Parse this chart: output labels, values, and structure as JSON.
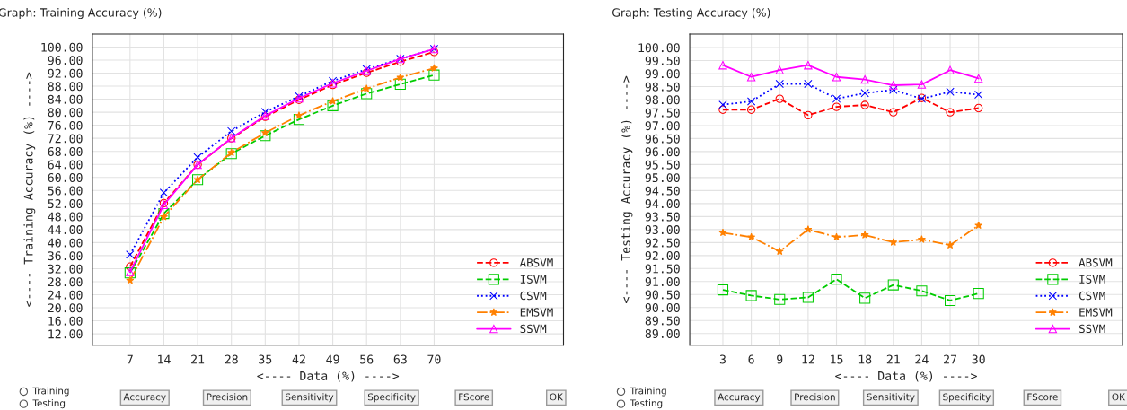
{
  "chart_data": [
    {
      "type": "line",
      "title": "Graph: Training Accuracy (%)",
      "xlabel": "<---- Data (%) ---->",
      "ylabel": "<---- Training Accuracy (%) ---->",
      "x": [
        7,
        14,
        21,
        28,
        35,
        42,
        49,
        56,
        63,
        70
      ],
      "series": [
        {
          "name": "ABSVM",
          "color": "#ff0000",
          "marker": "circle",
          "line_style": "dashed",
          "values": [
            32.6,
            52.1,
            63.9,
            72.0,
            78.6,
            83.8,
            88.4,
            92.1,
            95.5,
            98.5
          ]
        },
        {
          "name": "ISVM",
          "color": "#00cc00",
          "marker": "square",
          "line_style": "dashed",
          "values": [
            30.7,
            48.9,
            59.3,
            67.3,
            72.8,
            77.8,
            82.0,
            85.7,
            88.6,
            91.4
          ]
        },
        {
          "name": "CSVM",
          "color": "#0000ff",
          "marker": "cross",
          "line_style": "dotted",
          "values": [
            36.3,
            55.3,
            66.2,
            74.2,
            80.1,
            84.9,
            89.6,
            93.2,
            96.4,
            99.4
          ]
        },
        {
          "name": "EMSVM",
          "color": "#ff8000",
          "marker": "star",
          "line_style": "dashdot",
          "values": [
            28.4,
            47.9,
            59.3,
            67.6,
            73.7,
            79.0,
            83.4,
            87.2,
            90.7,
            93.5
          ]
        },
        {
          "name": "SSVM",
          "color": "#ff00ff",
          "marker": "triangle",
          "line_style": "solid",
          "values": [
            31.0,
            51.6,
            63.9,
            72.1,
            78.9,
            84.3,
            88.9,
            92.7,
            96.4,
            99.4
          ]
        }
      ],
      "xlim": [
        -0.8,
        96.8
      ],
      "xticks": [
        7,
        14,
        21,
        28,
        35,
        42,
        49,
        56,
        63,
        70
      ],
      "ylim": [
        8.5,
        104
      ],
      "yticks": [
        {
          "value": 12,
          "label": "12.00"
        },
        {
          "value": 16,
          "label": "16.00"
        },
        {
          "value": 20,
          "label": "20.00"
        },
        {
          "value": 24,
          "label": "24.00"
        },
        {
          "value": 28,
          "label": "28.00"
        },
        {
          "value": 32,
          "label": "32.00"
        },
        {
          "value": 36,
          "label": "36.00"
        },
        {
          "value": 40,
          "label": "40.00"
        },
        {
          "value": 44,
          "label": "44.00"
        },
        {
          "value": 48,
          "label": "48.00"
        },
        {
          "value": 52,
          "label": "52.00"
        },
        {
          "value": 56,
          "label": "56.00"
        },
        {
          "value": 60,
          "label": "60.00"
        },
        {
          "value": 64,
          "label": "64.00"
        },
        {
          "value": 68,
          "label": "68.00"
        },
        {
          "value": 72,
          "label": "72.00"
        },
        {
          "value": 76,
          "label": "76.00"
        },
        {
          "value": 80,
          "label": "80.00"
        },
        {
          "value": 84,
          "label": "84.00"
        },
        {
          "value": 88,
          "label": "88.00"
        },
        {
          "value": 92,
          "label": "92.00"
        },
        {
          "value": 96,
          "label": "96.00"
        },
        {
          "value": 100,
          "label": "100.00"
        }
      ],
      "grid": true,
      "legend": "bottom right",
      "annotations": [
        "Training",
        "Testing",
        "Accuracy",
        "Precision",
        "Sensitivity",
        "Specificity",
        "FScore",
        "OK"
      ]
    },
    {
      "type": "line",
      "title": "Graph: Testing Accuracy (%)",
      "xlabel": "<---- Data (%) ---->",
      "ylabel": "<---- Testing Accuracy (%) ---->",
      "x": [
        3,
        6,
        9,
        12,
        15,
        18,
        21,
        24,
        27,
        30
      ],
      "series": [
        {
          "name": "ABSVM",
          "color": "#ff0000",
          "marker": "circle",
          "line_style": "dashed",
          "values": [
            97.61,
            97.61,
            98.03,
            97.4,
            97.72,
            97.79,
            97.51,
            98.06,
            97.51,
            97.67
          ]
        },
        {
          "name": "ISVM",
          "color": "#00cc00",
          "marker": "square",
          "line_style": "dashed",
          "values": [
            90.68,
            90.46,
            90.31,
            90.39,
            91.09,
            90.36,
            90.87,
            90.64,
            90.27,
            90.54
          ]
        },
        {
          "name": "CSVM",
          "color": "#0000ff",
          "marker": "cross",
          "line_style": "dotted",
          "values": [
            97.8,
            97.93,
            98.6,
            98.6,
            98.03,
            98.25,
            98.37,
            98.03,
            98.3,
            98.19
          ]
        },
        {
          "name": "EMSVM",
          "color": "#ff8000",
          "marker": "star",
          "line_style": "dashdot",
          "values": [
            92.88,
            92.71,
            92.16,
            93.0,
            92.71,
            92.79,
            92.51,
            92.62,
            92.4,
            93.16
          ]
        },
        {
          "name": "SSVM",
          "color": "#ff00ff",
          "marker": "triangle",
          "line_style": "solid",
          "values": [
            99.32,
            98.87,
            99.13,
            99.32,
            98.87,
            98.77,
            98.55,
            98.58,
            99.13,
            98.81
          ]
        }
      ],
      "xlim": [
        -0.5,
        45.2
      ],
      "xticks": [
        3,
        6,
        9,
        12,
        15,
        18,
        21,
        24,
        27,
        30
      ],
      "ylim": [
        88.55,
        100.52
      ],
      "yticks": [
        {
          "value": 89,
          "label": "89.00"
        },
        {
          "value": 89.5,
          "label": "89.50"
        },
        {
          "value": 90,
          "label": "90.00"
        },
        {
          "value": 90.5,
          "label": "90.50"
        },
        {
          "value": 91,
          "label": "91.00"
        },
        {
          "value": 91.5,
          "label": "91.50"
        },
        {
          "value": 92,
          "label": "92.00"
        },
        {
          "value": 92.5,
          "label": "92.50"
        },
        {
          "value": 93,
          "label": "93.00"
        },
        {
          "value": 93.5,
          "label": "93.50"
        },
        {
          "value": 94,
          "label": "94.00"
        },
        {
          "value": 94.5,
          "label": "94.50"
        },
        {
          "value": 95,
          "label": "95.00"
        },
        {
          "value": 95.5,
          "label": "95.50"
        },
        {
          "value": 96,
          "label": "96.00"
        },
        {
          "value": 96.5,
          "label": "96.50"
        },
        {
          "value": 97,
          "label": "97.00"
        },
        {
          "value": 97.5,
          "label": "97.50"
        },
        {
          "value": 98,
          "label": "98.00"
        },
        {
          "value": 98.5,
          "label": "98.50"
        },
        {
          "value": 99,
          "label": "99.00"
        },
        {
          "value": 99.5,
          "label": "99.50"
        },
        {
          "value": 100,
          "label": "100.00"
        }
      ],
      "grid": true,
      "legend": "bottom right",
      "annotations": [
        "Training",
        "Testing",
        "Accuracy",
        "Precision",
        "Sensitivity",
        "Specificity",
        "FScore",
        "OK"
      ]
    }
  ]
}
